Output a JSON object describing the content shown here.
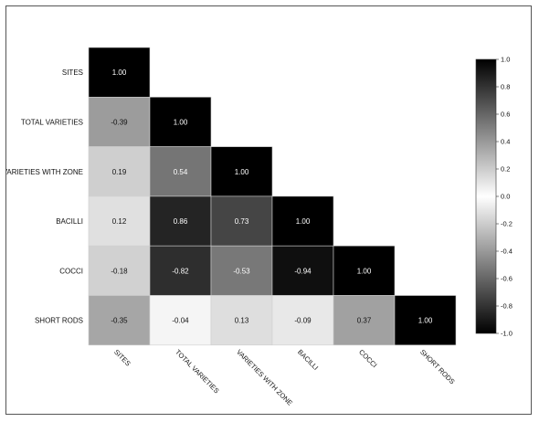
{
  "chart_data": {
    "type": "heatmap",
    "title": "",
    "xlabel": "",
    "ylabel": "",
    "variables": [
      "SITES",
      "TOTAL VARIETIES",
      "VARIETIES WITH ZONE",
      "BACILLI",
      "COCCI",
      "SHORT RODS"
    ],
    "rows": [
      {
        "label": "SITES",
        "values": [
          1.0
        ]
      },
      {
        "label": "TOTAL VARIETIES",
        "values": [
          -0.39,
          1.0
        ]
      },
      {
        "label": "VARIETIES WITH ZONE",
        "values": [
          0.19,
          0.54,
          1.0
        ]
      },
      {
        "label": "BACILLI",
        "values": [
          0.12,
          0.86,
          0.73,
          1.0
        ]
      },
      {
        "label": "COCCI",
        "values": [
          -0.18,
          -0.82,
          -0.53,
          -0.94,
          1.0
        ]
      },
      {
        "label": "SHORT RODS",
        "values": [
          -0.35,
          -0.04,
          0.13,
          -0.09,
          0.37,
          1.0
        ]
      }
    ],
    "value_labels": [
      [
        "1.00"
      ],
      [
        "-0.39",
        "1.00"
      ],
      [
        "0.19",
        "0.54",
        "1.00"
      ],
      [
        "0.12",
        "0.86",
        "0.73",
        "1.00"
      ],
      [
        "-0.18",
        "-0.82",
        "-0.53",
        "-0.94",
        "1.00"
      ],
      [
        "-0.35",
        "-0.04",
        "0.13",
        "-0.09",
        "0.37",
        "1.00"
      ]
    ],
    "colorbar": {
      "range": [
        -1.0,
        1.0
      ],
      "ticks": [
        "1.0",
        "0.8",
        "0.6",
        "0.4",
        "0.2",
        "0.0",
        "-0.2",
        "-0.4",
        "-0.6",
        "-0.8",
        "-1.0"
      ],
      "tick_values": [
        1.0,
        0.8,
        0.6,
        0.4,
        0.2,
        0.0,
        -0.2,
        -0.4,
        -0.6,
        -0.8,
        -1.0
      ],
      "colors": [
        "#000000",
        "#ffffff",
        "#000000"
      ],
      "placement": "right"
    },
    "grid": false,
    "legend": "none"
  }
}
